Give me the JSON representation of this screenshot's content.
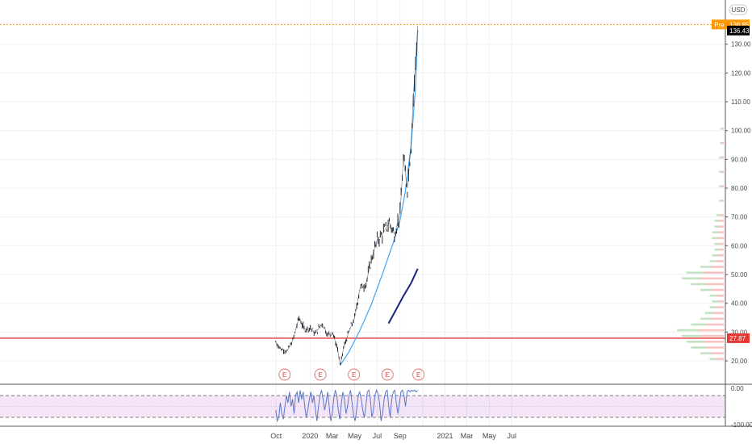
{
  "header": {
    "currency": "USD"
  },
  "chart_data": [
    {
      "type": "line",
      "title": "",
      "xlabel": "",
      "ylabel": "",
      "currency": "USD",
      "x_ticks": [
        "Oct",
        "2020",
        "Mar",
        "May",
        "Jul",
        "Sep",
        "2021",
        "Mar",
        "May",
        "Jul"
      ],
      "y_ticks": [
        "20.00",
        "30.00",
        "40.00",
        "50.00",
        "60.00",
        "70.00",
        "80.00",
        "90.00",
        "100.00",
        "110.00",
        "120.00",
        "130.00"
      ],
      "ylim": [
        14.5,
        141
      ],
      "grid": true,
      "price_axis_labels": [
        {
          "label": "Pre",
          "value": "136.85",
          "color": "#ff9800"
        },
        {
          "label": "",
          "value": "136.43",
          "color": "#000000"
        },
        {
          "label": "",
          "value": "27.87",
          "color": "#e53935"
        }
      ],
      "horizontal_lines": [
        {
          "y": 27.87,
          "color": "#e53935",
          "style": "solid"
        },
        {
          "y": 136.85,
          "color": "#ff9800",
          "style": "dotted"
        }
      ],
      "series": [
        {
          "type": "candlestick-close",
          "color": "#131722",
          "x": [
            "2019-09-30",
            "2019-10-15",
            "2019-10-31",
            "2019-11-15",
            "2019-12-02",
            "2019-12-16",
            "2020-01-02",
            "2020-01-15",
            "2020-02-03",
            "2020-02-18",
            "2020-03-02",
            "2020-03-16",
            "2020-03-23",
            "2020-04-01",
            "2020-04-15",
            "2020-05-01",
            "2020-05-15",
            "2020-06-01",
            "2020-06-15",
            "2020-07-01",
            "2020-07-15",
            "2020-08-03",
            "2020-08-17",
            "2020-09-01",
            "2020-09-10",
            "2020-09-21",
            "2020-10-01",
            "2020-10-07",
            "2020-10-13",
            "2020-10-19"
          ],
          "values": [
            26.5,
            24.0,
            23.5,
            27.0,
            35.0,
            31.0,
            31.5,
            29.5,
            33.0,
            29.0,
            30.0,
            24.0,
            18.5,
            24.5,
            30.0,
            35.0,
            45.0,
            47.0,
            55.0,
            62.0,
            64.0,
            68.0,
            64.0,
            71.0,
            90.0,
            80.0,
            95.0,
            112.0,
            123.0,
            136.43
          ]
        },
        {
          "type": "trend-curve",
          "color": "#42a5f5",
          "x": [
            "2020-03-23",
            "2020-04-15",
            "2020-05-15",
            "2020-06-15",
            "2020-07-15",
            "2020-08-15",
            "2020-09-01",
            "2020-09-15",
            "2020-10-01",
            "2020-10-13",
            "2020-10-19"
          ],
          "values": [
            18.5,
            23.0,
            30.5,
            39.5,
            50.0,
            61.5,
            69.0,
            78.5,
            95.0,
            115.0,
            135.0
          ]
        },
        {
          "type": "trend-curve",
          "color": "#1a237e",
          "x": [
            "2020-08-01",
            "2020-08-20",
            "2020-09-10",
            "2020-10-01",
            "2020-10-19"
          ],
          "values": [
            33.0,
            37.5,
            42.5,
            47.0,
            52.0
          ]
        }
      ],
      "earnings_markers": {
        "label": "E",
        "x": [
          "2019-10-24",
          "2020-01-29",
          "2020-04-29",
          "2020-07-29",
          "2020-10-21"
        ]
      },
      "volume_profile": {
        "note": "",
        "price_levels": [
          20,
          22,
          24,
          26,
          28,
          30,
          32,
          34,
          36,
          38,
          40,
          42,
          44,
          46,
          48,
          50,
          52,
          54,
          56,
          58,
          60,
          62,
          64,
          66,
          68,
          70,
          75,
          80,
          85,
          90,
          95,
          100
        ],
        "volumes": [
          6,
          10,
          14,
          16,
          18,
          20,
          14,
          10,
          8,
          6,
          5,
          6,
          10,
          14,
          18,
          16,
          10,
          6,
          5,
          4,
          4,
          5,
          5,
          4,
          4,
          3,
          2,
          2,
          2,
          2,
          1.5,
          1.5
        ]
      }
    },
    {
      "type": "line",
      "title": "",
      "ylim": [
        -100,
        0
      ],
      "y_ticks": [
        "0.00",
        "-100.00"
      ],
      "bands": [
        -20,
        -80
      ],
      "series": [
        {
          "name": "",
          "color": "#5b78c7",
          "values": [
            -60,
            -90,
            -80,
            -40,
            -70,
            -85,
            -50,
            -20,
            -40,
            -10,
            -50,
            -30,
            -70,
            -20,
            -10,
            -40,
            -5,
            -30,
            -10,
            -50,
            -80,
            -60,
            -30,
            -10,
            -40,
            -20,
            -60,
            -90,
            -50,
            -20,
            -5,
            -30,
            -60,
            -40,
            -10,
            -50,
            -90,
            -70,
            -30,
            -5,
            -20,
            -60,
            -85,
            -40,
            -10,
            -30,
            -70,
            -50,
            -20,
            -5,
            -40,
            -75,
            -90,
            -60,
            -20,
            -10,
            -30,
            -60,
            -80,
            -50,
            -10,
            -5,
            -30,
            -80,
            -60,
            -20,
            -5,
            -15,
            -40,
            -90,
            -70,
            -30,
            -10,
            -5,
            -50,
            -80,
            -30,
            -10,
            -5,
            -40,
            -70,
            -40,
            -10,
            -5,
            -20,
            -50,
            -10,
            -5,
            -10,
            -5,
            -8,
            -5,
            -10,
            -6
          ]
        }
      ]
    }
  ]
}
